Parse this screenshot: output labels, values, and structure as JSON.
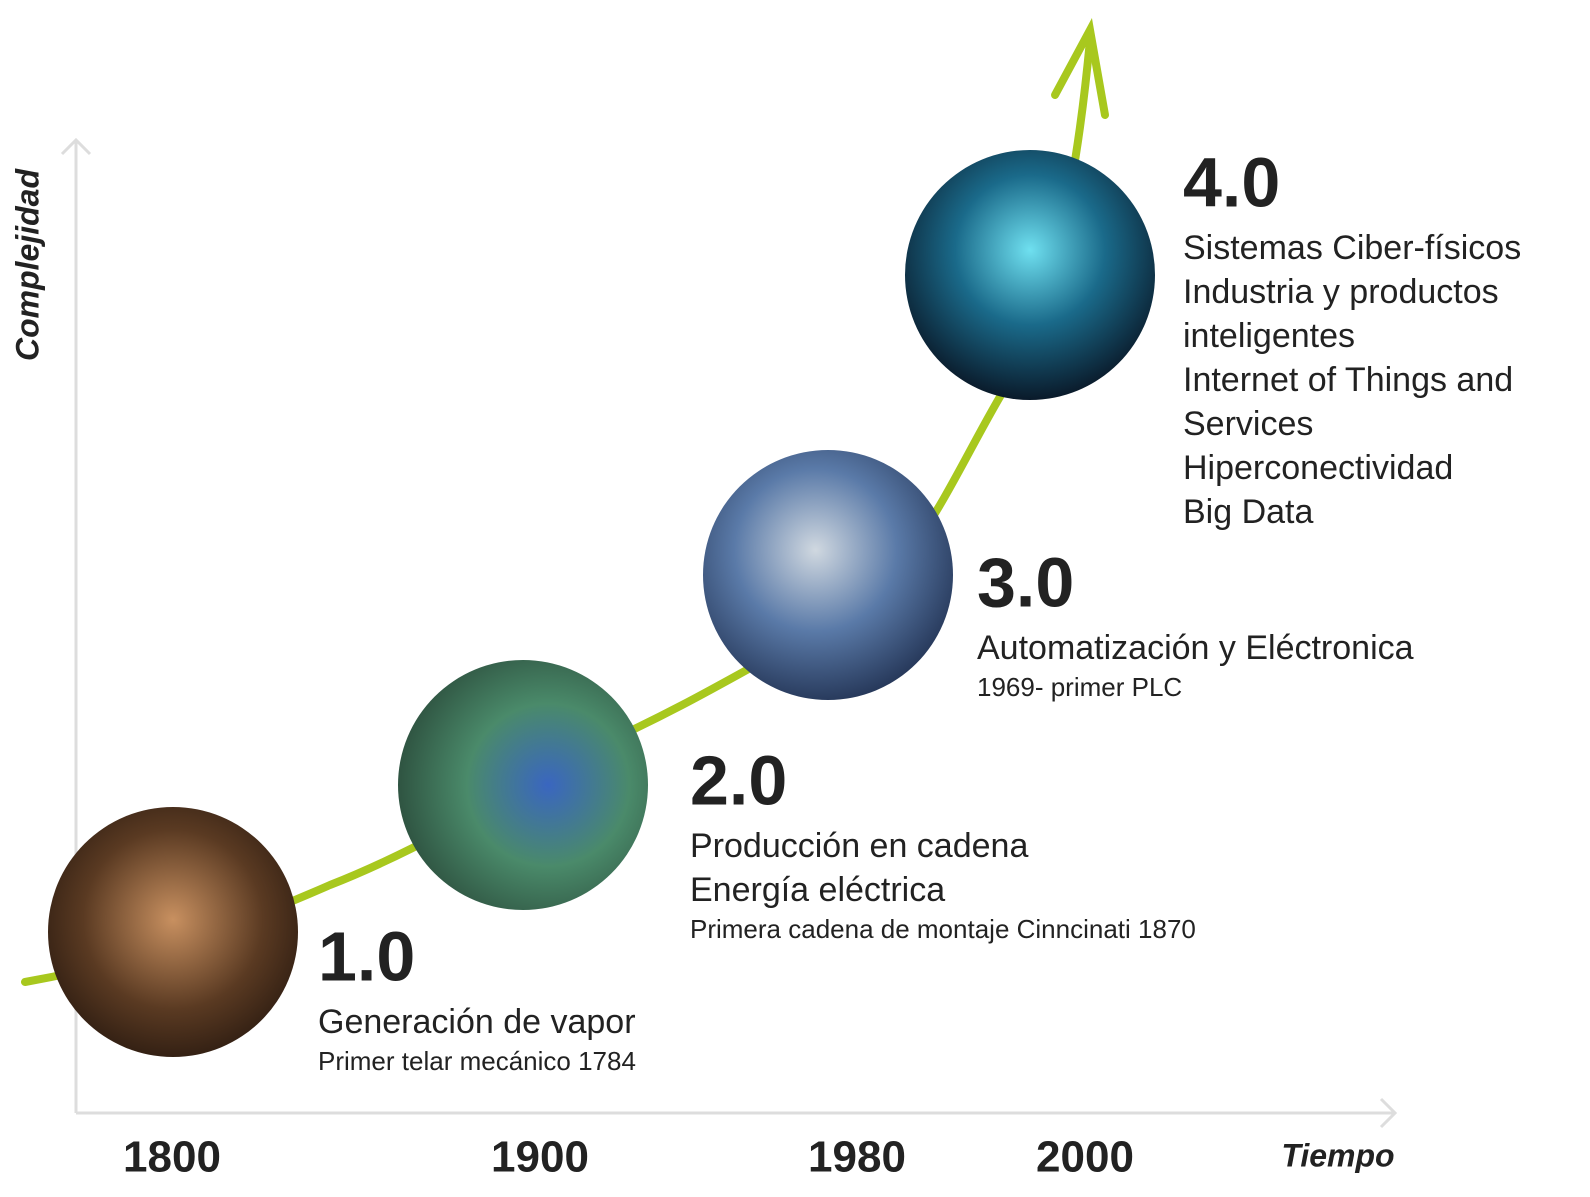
{
  "axes": {
    "y_label": "Complejidad",
    "x_label": "Tiempo",
    "years": [
      "1800",
      "1900",
      "1980",
      "2000"
    ]
  },
  "stages": [
    {
      "number": "1.0",
      "lines": [
        "Generación de vapor"
      ],
      "note": "Primer telar mecánico 1784"
    },
    {
      "number": "2.0",
      "lines": [
        "Producción en cadena",
        "Energía eléctrica"
      ],
      "note": "Primera cadena de montaje Cinncinati 1870"
    },
    {
      "number": "3.0",
      "lines": [
        "Automatización y Eléctronica"
      ],
      "note": "1969- primer PLC"
    },
    {
      "number": "4.0",
      "lines": [
        "Sistemas Ciber-físicos",
        "Industria y productos",
        "inteligentes",
        "Internet of Things and",
        "Services",
        "Hiperconectividad",
        "Big Data"
      ]
    }
  ]
}
